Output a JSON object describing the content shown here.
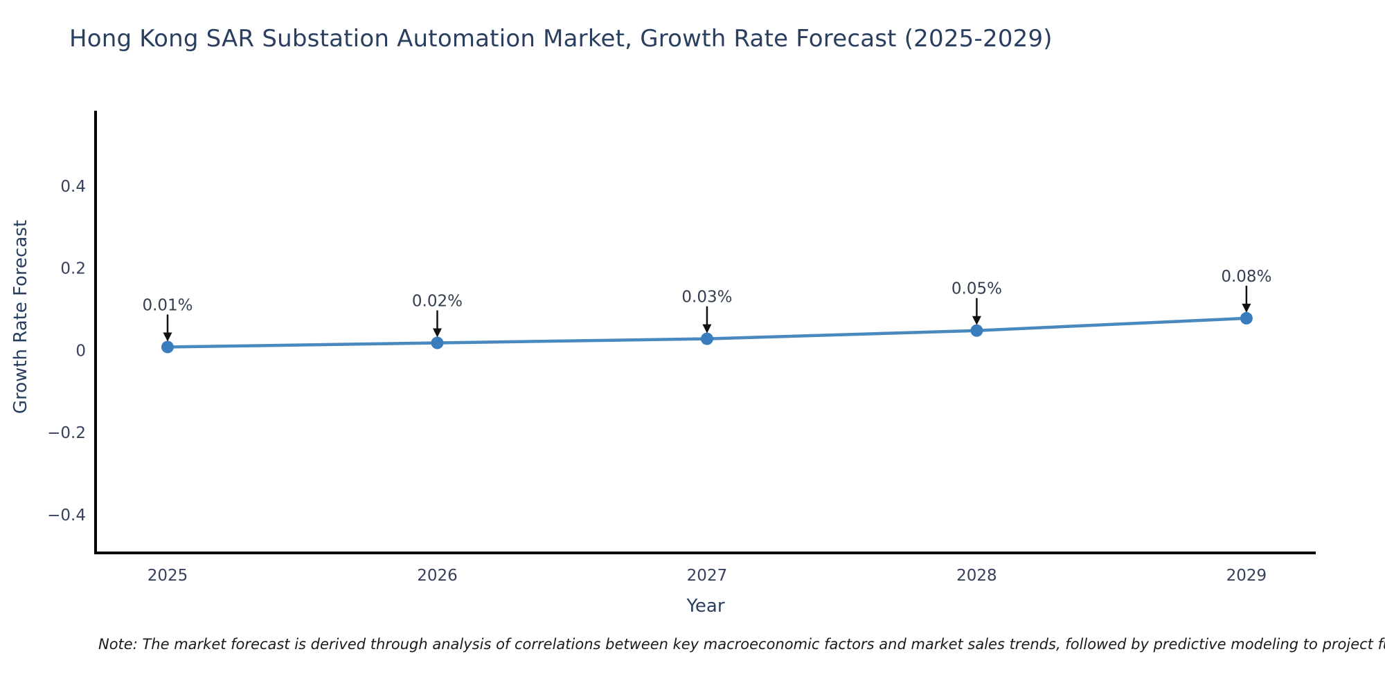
{
  "title": {
    "text": "Hong Kong SAR Substation Automation Market, Growth Rate Forecast (2025-2029)",
    "color": "#2a3f5f"
  },
  "note": {
    "text": "Note: The market forecast is derived through analysis of correlations between key macroeconomic factors and market sales trends, followed by predictive modeling to project future sa",
    "color": "#1a1a1a"
  },
  "chart_data": {
    "type": "line",
    "title": "Hong Kong SAR Substation Automation Market, Growth Rate Forecast (2025-2029)",
    "xlabel": "Year",
    "ylabel": "Growth Rate Forecast",
    "x": [
      2025,
      2026,
      2027,
      2028,
      2029
    ],
    "y": [
      0.01,
      0.02,
      0.03,
      0.05,
      0.08
    ],
    "point_labels": [
      "0.01%",
      "0.02%",
      "0.03%",
      "0.05%",
      "0.08%"
    ],
    "x_ticks": [
      [
        2025,
        "2025"
      ],
      [
        2026,
        "2026"
      ],
      [
        2027,
        "2027"
      ],
      [
        2028,
        "2028"
      ],
      [
        2029,
        "2029"
      ]
    ],
    "y_ticks": [
      [
        0.4,
        "0.4"
      ],
      [
        0.2,
        "0.2"
      ],
      [
        0,
        "0"
      ],
      [
        -0.2,
        "−0.2"
      ],
      [
        -0.4,
        "−0.4"
      ]
    ],
    "xlim": [
      2024.733,
      2029.257
    ],
    "ylim": [
      -0.491,
      0.585
    ],
    "grid": false,
    "legend": null,
    "line_color": "#4a89bd",
    "marker_color": "#3a7dbd",
    "annotation_color": "#333f50",
    "arrow_color": "#111111",
    "axis_color": "#000000",
    "tick_color": "#36415c"
  }
}
